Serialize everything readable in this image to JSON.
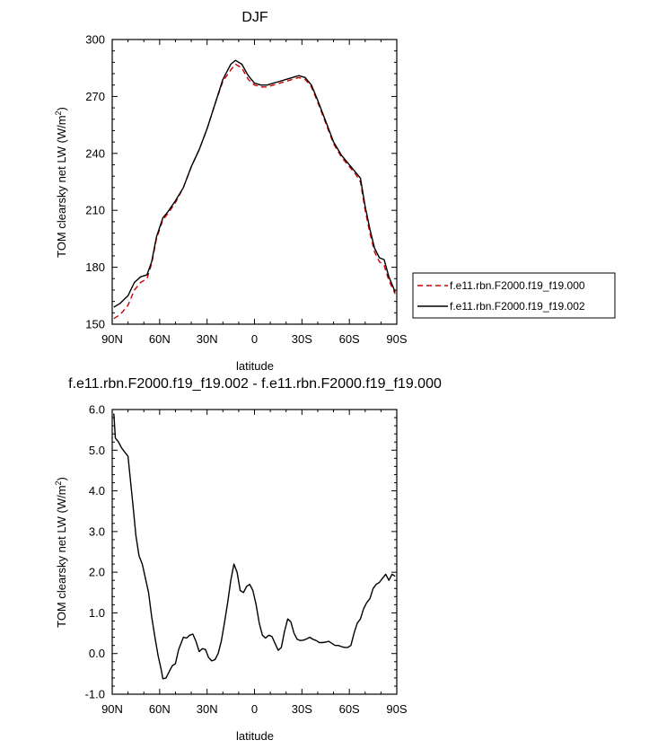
{
  "chart_data": [
    {
      "type": "line",
      "title": "DJF",
      "xlabel": "latitude",
      "ylabel_main": "TOM clearsky net LW (W/m",
      "ylabel_sup": "2",
      "ylabel_close": ")",
      "xlim": [
        90,
        -90
      ],
      "ylim": [
        150,
        300
      ],
      "xticks": [
        90,
        60,
        30,
        0,
        -30,
        -60,
        -90
      ],
      "xtick_labels": [
        "90N",
        "60N",
        "30N",
        "0",
        "30S",
        "60S",
        "90S"
      ],
      "yticks": [
        150,
        180,
        210,
        240,
        270,
        300
      ],
      "ytick_labels": [
        "150",
        "180",
        "210",
        "240",
        "270",
        "300"
      ],
      "legend_position": "right",
      "series": [
        {
          "name": "f.e11.rbn.F2000.f19_f19.000",
          "color": "#cc0000",
          "dash": "dashed",
          "x": [
            89,
            85,
            80,
            76,
            72,
            68,
            65,
            62,
            58,
            55,
            50,
            45,
            40,
            35,
            30,
            25,
            20,
            15,
            12,
            8,
            4,
            0,
            -4,
            -8,
            -12,
            -16,
            -20,
            -24,
            -28,
            -32,
            -36,
            -40,
            -45,
            -50,
            -55,
            -60,
            -64,
            -67,
            -70,
            -73,
            -76,
            -79,
            -82,
            -85,
            -89
          ],
          "y": [
            153,
            155,
            160,
            168,
            172,
            174,
            182,
            195,
            205,
            208,
            214,
            222,
            233,
            242,
            253,
            266,
            278,
            284,
            287,
            285,
            279,
            276,
            275,
            275,
            276,
            277,
            278,
            279,
            280,
            279,
            275,
            267,
            256,
            245,
            238,
            233,
            229,
            225,
            210,
            198,
            188,
            183,
            181,
            173,
            166
          ]
        },
        {
          "name": "f.e11.rbn.F2000.f19_f19.002",
          "color": "#000000",
          "dash": "solid",
          "x": [
            89,
            85,
            80,
            76,
            72,
            68,
            65,
            62,
            58,
            55,
            50,
            45,
            40,
            35,
            30,
            25,
            20,
            15,
            12,
            8,
            4,
            0,
            -4,
            -8,
            -12,
            -16,
            -20,
            -24,
            -28,
            -32,
            -36,
            -40,
            -45,
            -50,
            -55,
            -60,
            -64,
            -67,
            -70,
            -73,
            -76,
            -79,
            -82,
            -85,
            -89
          ],
          "y": [
            159,
            161,
            165,
            172,
            175,
            176,
            183,
            196,
            206,
            209,
            215,
            222,
            233,
            242,
            253,
            266,
            279,
            287,
            289,
            287,
            281,
            277,
            276,
            276,
            277,
            278,
            279,
            280,
            281,
            280,
            276,
            268,
            257,
            246,
            239,
            234,
            230,
            227,
            212,
            200,
            190,
            185,
            184,
            175,
            167
          ]
        }
      ]
    },
    {
      "type": "line",
      "title": "f.e11.rbn.F2000.f19_f19.002 - f.e11.rbn.F2000.f19_f19.000",
      "xlabel": "latitude",
      "ylabel_main": "TOM clearsky net LW (W/m",
      "ylabel_sup": "2",
      "ylabel_close": ")",
      "xlim": [
        90,
        -90
      ],
      "ylim": [
        -1.0,
        6.0
      ],
      "xticks": [
        90,
        60,
        30,
        0,
        -30,
        -60,
        -90
      ],
      "xtick_labels": [
        "90N",
        "60N",
        "30N",
        "0",
        "30S",
        "60S",
        "90S"
      ],
      "yticks": [
        -1.0,
        0.0,
        1.0,
        2.0,
        3.0,
        4.0,
        5.0,
        6.0
      ],
      "ytick_labels": [
        "-1.0",
        "0.0",
        "1.0",
        "2.0",
        "3.0",
        "4.0",
        "5.0",
        "6.0"
      ],
      "series": [
        {
          "color": "#000000",
          "dash": "solid",
          "x": [
            89,
            88,
            86,
            84,
            82,
            80,
            77,
            75,
            73,
            71,
            69,
            67,
            65,
            63,
            61,
            59,
            58,
            56,
            54,
            52,
            50,
            48,
            45,
            43,
            41,
            39,
            37,
            35,
            33,
            31,
            29,
            27,
            25,
            23,
            21,
            19,
            17,
            15,
            13,
            11,
            9,
            7,
            5,
            3,
            1,
            -1,
            -3,
            -5,
            -7,
            -9,
            -11,
            -13,
            -15,
            -17,
            -19,
            -21,
            -23,
            -25,
            -27,
            -29,
            -31,
            -33,
            -35,
            -37,
            -39,
            -41,
            -43,
            -45,
            -47,
            -49,
            -51,
            -53,
            -55,
            -57,
            -59,
            -61,
            -63,
            -65,
            -67,
            -69,
            -71,
            -73,
            -75,
            -77,
            -79,
            -81,
            -83,
            -85,
            -87,
            -89
          ],
          "y": [
            5.9,
            5.3,
            5.2,
            5.05,
            4.95,
            4.85,
            3.7,
            2.9,
            2.4,
            2.2,
            1.85,
            1.5,
            0.9,
            0.4,
            -0.05,
            -0.4,
            -0.62,
            -0.6,
            -0.45,
            -0.3,
            -0.25,
            0.1,
            0.4,
            0.38,
            0.45,
            0.48,
            0.3,
            0.05,
            0.12,
            0.1,
            -0.1,
            -0.18,
            -0.15,
            0.0,
            0.3,
            0.75,
            1.25,
            1.8,
            2.2,
            2.0,
            1.55,
            1.5,
            1.65,
            1.7,
            1.55,
            1.2,
            0.75,
            0.45,
            0.38,
            0.45,
            0.42,
            0.25,
            0.08,
            0.15,
            0.55,
            0.85,
            0.78,
            0.5,
            0.35,
            0.32,
            0.33,
            0.36,
            0.4,
            0.35,
            0.32,
            0.27,
            0.27,
            0.28,
            0.3,
            0.25,
            0.2,
            0.2,
            0.17,
            0.15,
            0.15,
            0.2,
            0.5,
            0.75,
            0.85,
            1.1,
            1.25,
            1.35,
            1.6,
            1.7,
            1.75,
            1.85,
            1.95,
            1.8,
            1.95,
            1.9
          ]
        }
      ]
    }
  ]
}
